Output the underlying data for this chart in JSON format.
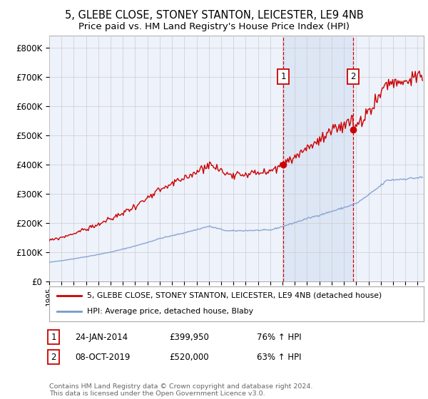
{
  "title": "5, GLEBE CLOSE, STONEY STANTON, LEICESTER, LE9 4NB",
  "subtitle": "Price paid vs. HM Land Registry's House Price Index (HPI)",
  "title_fontsize": 10.5,
  "subtitle_fontsize": 9.5,
  "ylabel_ticks": [
    "£0",
    "£100K",
    "£200K",
    "£300K",
    "£400K",
    "£500K",
    "£600K",
    "£700K",
    "£800K"
  ],
  "ytick_values": [
    0,
    100000,
    200000,
    300000,
    400000,
    500000,
    600000,
    700000,
    800000
  ],
  "ylim": [
    0,
    840000
  ],
  "xlim_start": 1995.0,
  "xlim_end": 2025.5,
  "x_ticks": [
    1995,
    1996,
    1997,
    1998,
    1999,
    2000,
    2001,
    2002,
    2003,
    2004,
    2005,
    2006,
    2007,
    2008,
    2009,
    2010,
    2011,
    2012,
    2013,
    2014,
    2015,
    2016,
    2017,
    2018,
    2019,
    2020,
    2021,
    2022,
    2023,
    2024,
    2025
  ],
  "purchase1_date": 2014.07,
  "purchase1_price": 399950,
  "purchase1_label": "1",
  "purchase2_date": 2019.77,
  "purchase2_price": 520000,
  "purchase2_label": "2",
  "legend_line1": "5, GLEBE CLOSE, STONEY STANTON, LEICESTER, LE9 4NB (detached house)",
  "legend_line2": "HPI: Average price, detached house, Blaby",
  "note1_label": "1",
  "note1_date": "24-JAN-2014",
  "note1_price": "£399,950",
  "note1_hpi": "76% ↑ HPI",
  "note2_label": "2",
  "note2_date": "08-OCT-2019",
  "note2_price": "£520,000",
  "note2_hpi": "63% ↑ HPI",
  "copyright": "Contains HM Land Registry data © Crown copyright and database right 2024.\nThis data is licensed under the Open Government Licence v3.0.",
  "bg_color": "#eef2fb",
  "line_red_color": "#cc0000",
  "line_blue_color": "#7799cc",
  "grid_color": "#cccccc",
  "vline_color": "#cc0000",
  "highlight_color": "#dde6f5"
}
